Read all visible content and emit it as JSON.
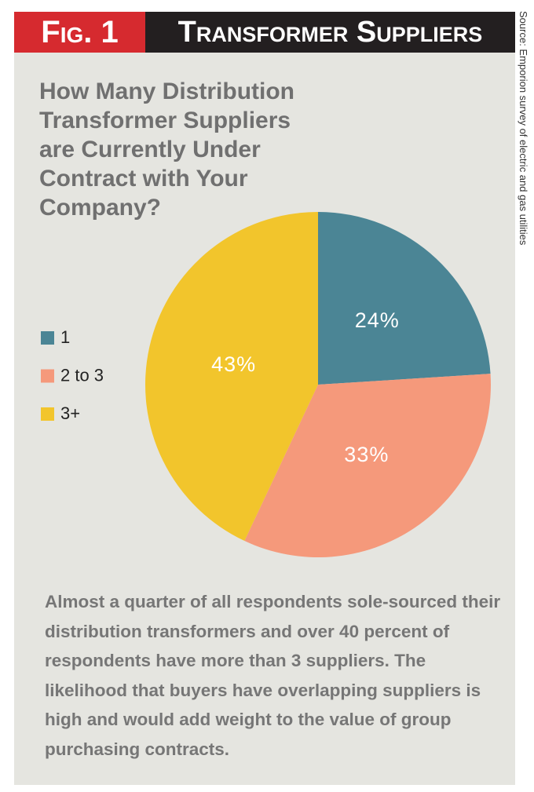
{
  "chart_data": {
    "type": "pie",
    "figure_label": "Fig. 1",
    "header": "Transformer Suppliers",
    "title": "How Many Distribution Transformer Suppliers are Currently Under Contract with Your Company?",
    "categories": [
      "1",
      "2 to 3",
      "3+"
    ],
    "values": [
      24,
      33,
      43
    ],
    "value_labels": [
      "24%",
      "33%",
      "43%"
    ],
    "colors": [
      "#4b8595",
      "#f5997b",
      "#f2c52c"
    ],
    "note": "Almost a quarter of all respondents sole-sourced their distribution transformers and over 40 percent of respondents have more than 3 suppliers. The likelihood that buyers have overlapping suppliers is high and would add weight to the value of group purchasing contracts.",
    "source": "Source: Emporion survey of electric and gas utilities"
  }
}
